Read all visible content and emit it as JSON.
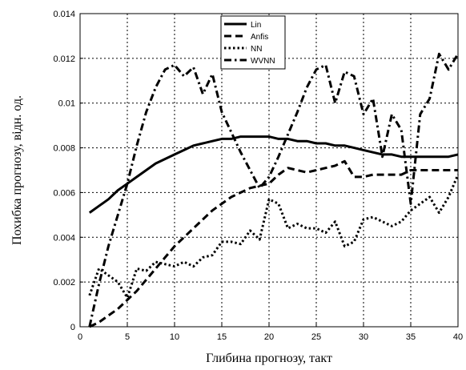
{
  "chart_data": {
    "type": "line",
    "title": "",
    "xlabel": "Глибина прогнозу, такт",
    "ylabel": "Похибка прогнозу, відн. од.",
    "xlim": [
      0,
      40
    ],
    "ylim": [
      0,
      0.014
    ],
    "x_ticks": [
      "0",
      "5",
      "10",
      "15",
      "20",
      "25",
      "30",
      "35",
      "40"
    ],
    "y_ticks": [
      "0",
      "0.002",
      "0.004",
      "0.006",
      "0.008",
      "0.01",
      "0.012",
      "0.014"
    ],
    "grid": true,
    "legend_position": "top-center",
    "series": [
      {
        "name": "Lin",
        "style": "solid",
        "color": "#000000",
        "points": [
          [
            1,
            0.0051
          ],
          [
            2,
            0.0054
          ],
          [
            3,
            0.0057
          ],
          [
            4,
            0.0061
          ],
          [
            5,
            0.0064
          ],
          [
            6,
            0.0067
          ],
          [
            7,
            0.007
          ],
          [
            8,
            0.0073
          ],
          [
            9,
            0.0075
          ],
          [
            10,
            0.0077
          ],
          [
            11,
            0.0079
          ],
          [
            12,
            0.0081
          ],
          [
            13,
            0.0082
          ],
          [
            14,
            0.0083
          ],
          [
            15,
            0.0084
          ],
          [
            16,
            0.0084
          ],
          [
            17,
            0.0085
          ],
          [
            18,
            0.0085
          ],
          [
            19,
            0.0085
          ],
          [
            20,
            0.0085
          ],
          [
            21,
            0.0084
          ],
          [
            22,
            0.0084
          ],
          [
            23,
            0.0083
          ],
          [
            24,
            0.0083
          ],
          [
            25,
            0.0082
          ],
          [
            26,
            0.0082
          ],
          [
            27,
            0.0081
          ],
          [
            28,
            0.0081
          ],
          [
            29,
            0.008
          ],
          [
            30,
            0.0079
          ],
          [
            31,
            0.0078
          ],
          [
            32,
            0.0077
          ],
          [
            33,
            0.0077
          ],
          [
            34,
            0.0076
          ],
          [
            35,
            0.0076
          ],
          [
            36,
            0.0076
          ],
          [
            37,
            0.0076
          ],
          [
            38,
            0.0076
          ],
          [
            39,
            0.0076
          ],
          [
            40,
            0.0077
          ]
        ]
      },
      {
        "name": "Anfis",
        "style": "dashed",
        "color": "#000000",
        "points": [
          [
            1,
            0.0
          ],
          [
            2,
            0.0002
          ],
          [
            3,
            0.0005
          ],
          [
            4,
            0.0008
          ],
          [
            5,
            0.0012
          ],
          [
            6,
            0.0016
          ],
          [
            7,
            0.0021
          ],
          [
            8,
            0.0026
          ],
          [
            9,
            0.0031
          ],
          [
            10,
            0.0036
          ],
          [
            11,
            0.004
          ],
          [
            12,
            0.0044
          ],
          [
            13,
            0.0048
          ],
          [
            14,
            0.0052
          ],
          [
            15,
            0.0055
          ],
          [
            16,
            0.0058
          ],
          [
            17,
            0.006
          ],
          [
            18,
            0.0062
          ],
          [
            19,
            0.0063
          ],
          [
            20,
            0.0064
          ],
          [
            21,
            0.0068
          ],
          [
            22,
            0.0071
          ],
          [
            23,
            0.007
          ],
          [
            24,
            0.0069
          ],
          [
            25,
            0.007
          ],
          [
            26,
            0.0071
          ],
          [
            27,
            0.0072
          ],
          [
            28,
            0.0074
          ],
          [
            29,
            0.0067
          ],
          [
            30,
            0.0067
          ],
          [
            31,
            0.0068
          ],
          [
            32,
            0.0068
          ],
          [
            33,
            0.0068
          ],
          [
            34,
            0.0068
          ],
          [
            35,
            0.007
          ],
          [
            36,
            0.007
          ],
          [
            37,
            0.007
          ],
          [
            38,
            0.007
          ],
          [
            39,
            0.007
          ],
          [
            40,
            0.007
          ]
        ]
      },
      {
        "name": "NN",
        "style": "dotted",
        "color": "#000000",
        "points": [
          [
            1,
            0.0014
          ],
          [
            2,
            0.0026
          ],
          [
            3,
            0.0023
          ],
          [
            4,
            0.002
          ],
          [
            5,
            0.0013
          ],
          [
            6,
            0.0026
          ],
          [
            7,
            0.0025
          ],
          [
            8,
            0.0029
          ],
          [
            9,
            0.0028
          ],
          [
            10,
            0.0027
          ],
          [
            11,
            0.0029
          ],
          [
            12,
            0.0027
          ],
          [
            13,
            0.0031
          ],
          [
            14,
            0.0032
          ],
          [
            15,
            0.0038
          ],
          [
            16,
            0.0038
          ],
          [
            17,
            0.0037
          ],
          [
            18,
            0.0043
          ],
          [
            19,
            0.0039
          ],
          [
            20,
            0.0057
          ],
          [
            21,
            0.0055
          ],
          [
            22,
            0.0044
          ],
          [
            23,
            0.0046
          ],
          [
            24,
            0.0044
          ],
          [
            25,
            0.0044
          ],
          [
            26,
            0.0042
          ],
          [
            27,
            0.0047
          ],
          [
            28,
            0.0036
          ],
          [
            29,
            0.0038
          ],
          [
            30,
            0.0048
          ],
          [
            31,
            0.0049
          ],
          [
            32,
            0.0047
          ],
          [
            33,
            0.0045
          ],
          [
            34,
            0.0047
          ],
          [
            35,
            0.0052
          ],
          [
            36,
            0.0055
          ],
          [
            37,
            0.0058
          ],
          [
            38,
            0.0051
          ],
          [
            39,
            0.0058
          ],
          [
            40,
            0.0068
          ]
        ]
      },
      {
        "name": "WVNN",
        "style": "dash-dot",
        "color": "#000000",
        "points": [
          [
            1,
            0.0
          ],
          [
            2,
            0.0019
          ],
          [
            3,
            0.0036
          ],
          [
            4,
            0.005
          ],
          [
            5,
            0.0064
          ],
          [
            6,
            0.0081
          ],
          [
            7,
            0.0096
          ],
          [
            8,
            0.0107
          ],
          [
            9,
            0.0115
          ],
          [
            10,
            0.0117
          ],
          [
            11,
            0.0112
          ],
          [
            12,
            0.0116
          ],
          [
            13,
            0.0104
          ],
          [
            14,
            0.0113
          ],
          [
            15,
            0.0096
          ],
          [
            16,
            0.0087
          ],
          [
            17,
            0.0078
          ],
          [
            18,
            0.007
          ],
          [
            19,
            0.0062
          ],
          [
            20,
            0.0067
          ],
          [
            21,
            0.0076
          ],
          [
            22,
            0.0086
          ],
          [
            23,
            0.0096
          ],
          [
            24,
            0.0107
          ],
          [
            25,
            0.0115
          ],
          [
            26,
            0.0117
          ],
          [
            27,
            0.01
          ],
          [
            28,
            0.0114
          ],
          [
            29,
            0.0112
          ],
          [
            30,
            0.0095
          ],
          [
            31,
            0.0102
          ],
          [
            32,
            0.0076
          ],
          [
            33,
            0.0095
          ],
          [
            34,
            0.0088
          ],
          [
            35,
            0.0055
          ],
          [
            36,
            0.0095
          ],
          [
            37,
            0.0102
          ],
          [
            38,
            0.0122
          ],
          [
            39,
            0.0115
          ],
          [
            40,
            0.0122
          ]
        ]
      }
    ]
  }
}
